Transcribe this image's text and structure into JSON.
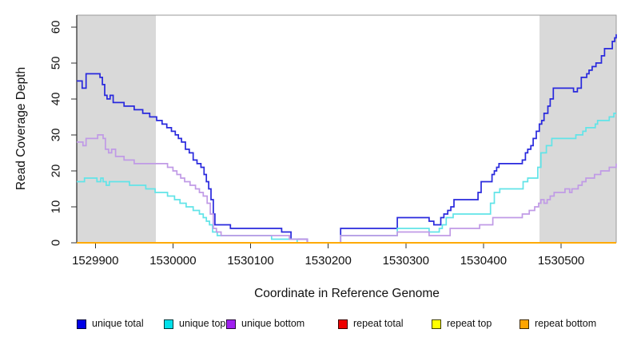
{
  "chart_data": {
    "type": "line",
    "subtype": "step",
    "title": "",
    "xlabel": "Coordinate in Reference Genome",
    "ylabel": "Read Coverage Depth",
    "xlim": [
      1529876,
      1530571
    ],
    "ylim": [
      0,
      63.3
    ],
    "x_ticks": [
      1529900,
      1530000,
      1530100,
      1530200,
      1530300,
      1530400,
      1530500
    ],
    "y_ticks": [
      0,
      10,
      20,
      30,
      40,
      50,
      60
    ],
    "grid": false,
    "legend_position": "bottom",
    "shade_color": "#d9d9d9",
    "shaded_regions": [
      {
        "x0": 1529876,
        "x1": 1529978
      },
      {
        "x0": 1530472,
        "x1": 1530571
      }
    ],
    "series": [
      {
        "name": "unique total",
        "line_color": "#2929dd",
        "legend_color": "#0000e6",
        "points": [
          [
            1529876,
            45
          ],
          [
            1529883,
            43
          ],
          [
            1529888,
            47
          ],
          [
            1529906,
            46
          ],
          [
            1529909,
            44
          ],
          [
            1529912,
            41
          ],
          [
            1529915,
            40
          ],
          [
            1529919,
            41
          ],
          [
            1529923,
            39
          ],
          [
            1529937,
            38
          ],
          [
            1529950,
            37
          ],
          [
            1529961,
            36
          ],
          [
            1529970,
            35
          ],
          [
            1529979,
            34
          ],
          [
            1529986,
            33
          ],
          [
            1529992,
            32
          ],
          [
            1529998,
            31
          ],
          [
            1530003,
            30
          ],
          [
            1530007,
            29
          ],
          [
            1530011,
            28
          ],
          [
            1530016,
            26
          ],
          [
            1530021,
            25
          ],
          [
            1530026,
            23
          ],
          [
            1530031,
            22
          ],
          [
            1530036,
            21
          ],
          [
            1530040,
            19
          ],
          [
            1530043,
            17
          ],
          [
            1530046,
            15
          ],
          [
            1530049,
            12
          ],
          [
            1530052,
            8
          ],
          [
            1530054,
            5
          ],
          [
            1530074,
            4
          ],
          [
            1530140,
            3
          ],
          [
            1530152,
            1
          ],
          [
            1530173,
            0
          ],
          [
            1530216,
            4
          ],
          [
            1530289,
            7
          ],
          [
            1530330,
            6
          ],
          [
            1530336,
            5
          ],
          [
            1530345,
            7
          ],
          [
            1530349,
            8
          ],
          [
            1530354,
            9
          ],
          [
            1530358,
            10
          ],
          [
            1530362,
            12
          ],
          [
            1530393,
            14
          ],
          [
            1530397,
            17
          ],
          [
            1530411,
            19
          ],
          [
            1530414,
            20
          ],
          [
            1530417,
            21
          ],
          [
            1530420,
            22
          ],
          [
            1530450,
            23
          ],
          [
            1530454,
            25
          ],
          [
            1530457,
            26
          ],
          [
            1530461,
            27
          ],
          [
            1530464,
            29
          ],
          [
            1530468,
            31
          ],
          [
            1530472,
            33
          ],
          [
            1530475,
            34
          ],
          [
            1530478,
            36
          ],
          [
            1530483,
            38
          ],
          [
            1530486,
            40
          ],
          [
            1530490,
            43
          ],
          [
            1530516,
            42
          ],
          [
            1530521,
            43
          ],
          [
            1530526,
            46
          ],
          [
            1530533,
            47
          ],
          [
            1530536,
            48
          ],
          [
            1530540,
            49
          ],
          [
            1530545,
            50
          ],
          [
            1530552,
            52
          ],
          [
            1530556,
            54
          ],
          [
            1530566,
            56
          ],
          [
            1530569,
            57
          ],
          [
            1530571,
            58
          ]
        ]
      },
      {
        "name": "unique top",
        "line_color": "#61e4e8",
        "legend_color": "#00e0ea",
        "points": [
          [
            1529876,
            17
          ],
          [
            1529886,
            18
          ],
          [
            1529902,
            17
          ],
          [
            1529907,
            18
          ],
          [
            1529910,
            17
          ],
          [
            1529914,
            16
          ],
          [
            1529918,
            17
          ],
          [
            1529944,
            16
          ],
          [
            1529965,
            15
          ],
          [
            1529977,
            14
          ],
          [
            1529993,
            13
          ],
          [
            1530002,
            12
          ],
          [
            1530009,
            11
          ],
          [
            1530017,
            10
          ],
          [
            1530026,
            9
          ],
          [
            1530034,
            8
          ],
          [
            1530039,
            7
          ],
          [
            1530043,
            6
          ],
          [
            1530047,
            5
          ],
          [
            1530051,
            3
          ],
          [
            1530057,
            2
          ],
          [
            1530127,
            1
          ],
          [
            1530160,
            0
          ],
          [
            1530216,
            2
          ],
          [
            1530289,
            4
          ],
          [
            1530330,
            3
          ],
          [
            1530343,
            4
          ],
          [
            1530347,
            5
          ],
          [
            1530352,
            7
          ],
          [
            1530361,
            8
          ],
          [
            1530409,
            11
          ],
          [
            1530414,
            14
          ],
          [
            1530421,
            15
          ],
          [
            1530451,
            17
          ],
          [
            1530457,
            18
          ],
          [
            1530470,
            21
          ],
          [
            1530474,
            25
          ],
          [
            1530481,
            27
          ],
          [
            1530488,
            29
          ],
          [
            1530519,
            30
          ],
          [
            1530528,
            31
          ],
          [
            1530532,
            32
          ],
          [
            1530544,
            33
          ],
          [
            1530547,
            34
          ],
          [
            1530562,
            35
          ],
          [
            1530568,
            36
          ],
          [
            1530571,
            36
          ]
        ]
      },
      {
        "name": "unique bottom",
        "line_color": "#c09ae6",
        "legend_color": "#a020f0",
        "points": [
          [
            1529876,
            28
          ],
          [
            1529884,
            27
          ],
          [
            1529888,
            29
          ],
          [
            1529903,
            30
          ],
          [
            1529910,
            29
          ],
          [
            1529913,
            26
          ],
          [
            1529917,
            25
          ],
          [
            1529921,
            26
          ],
          [
            1529926,
            24
          ],
          [
            1529937,
            23
          ],
          [
            1529950,
            22
          ],
          [
            1529993,
            21
          ],
          [
            1530000,
            20
          ],
          [
            1530005,
            19
          ],
          [
            1530010,
            18
          ],
          [
            1530015,
            17
          ],
          [
            1530022,
            16
          ],
          [
            1530029,
            15
          ],
          [
            1530034,
            14
          ],
          [
            1530039,
            13
          ],
          [
            1530044,
            11
          ],
          [
            1530048,
            8
          ],
          [
            1530052,
            4
          ],
          [
            1530056,
            3
          ],
          [
            1530062,
            2
          ],
          [
            1530150,
            1
          ],
          [
            1530173,
            0
          ],
          [
            1530216,
            2
          ],
          [
            1530289,
            3
          ],
          [
            1530330,
            2
          ],
          [
            1530357,
            4
          ],
          [
            1530395,
            5
          ],
          [
            1530412,
            7
          ],
          [
            1530450,
            8
          ],
          [
            1530459,
            9
          ],
          [
            1530466,
            10
          ],
          [
            1530471,
            11
          ],
          [
            1530474,
            12
          ],
          [
            1530478,
            11
          ],
          [
            1530482,
            12
          ],
          [
            1530486,
            13
          ],
          [
            1530491,
            14
          ],
          [
            1530505,
            15
          ],
          [
            1530511,
            14
          ],
          [
            1530514,
            15
          ],
          [
            1530522,
            16
          ],
          [
            1530527,
            17
          ],
          [
            1530532,
            18
          ],
          [
            1530543,
            19
          ],
          [
            1530551,
            20
          ],
          [
            1530562,
            21
          ],
          [
            1530571,
            22
          ]
        ]
      },
      {
        "name": "repeat total",
        "line_color": "#ee0000",
        "legend_color": "#ee0000",
        "points": [
          [
            1529876,
            0
          ],
          [
            1530571,
            0
          ]
        ]
      },
      {
        "name": "repeat top",
        "line_color": "#ffff00",
        "legend_color": "#ffff00",
        "points": [
          [
            1529876,
            0
          ],
          [
            1530571,
            0
          ]
        ]
      },
      {
        "name": "repeat bottom",
        "line_color": "#ffa500",
        "legend_color": "#ffa500",
        "points": [
          [
            1529876,
            0
          ],
          [
            1530571,
            0
          ]
        ]
      }
    ]
  }
}
